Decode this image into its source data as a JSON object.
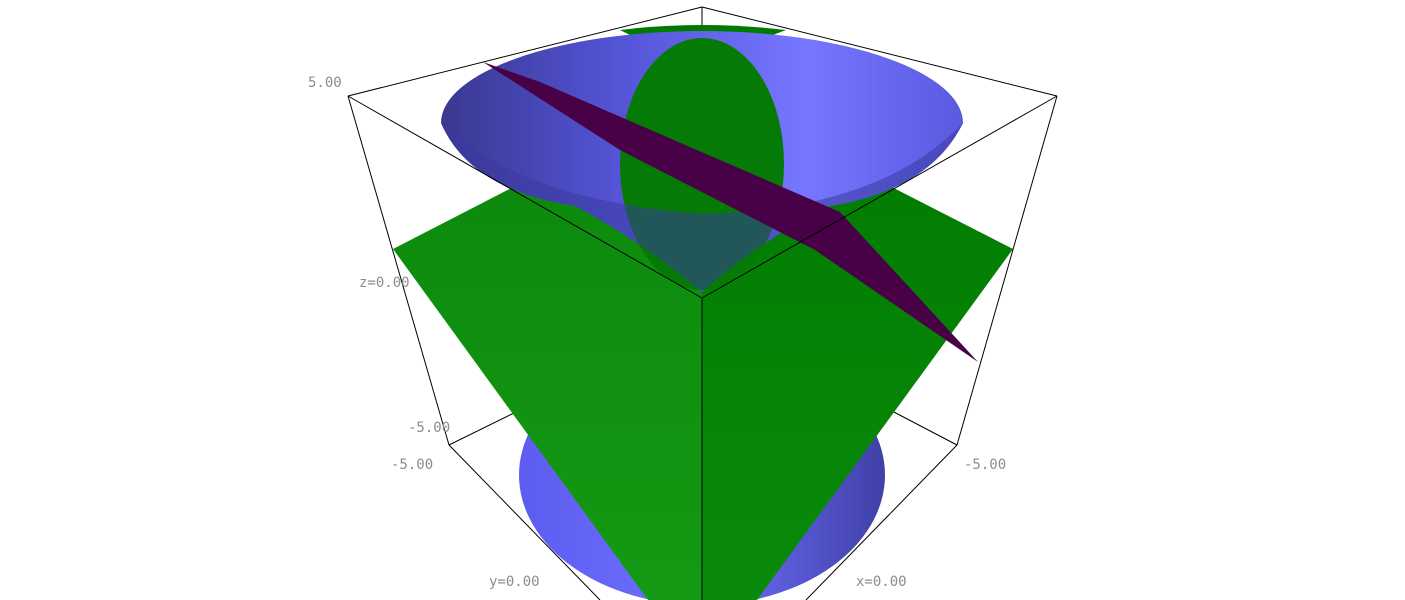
{
  "plot": {
    "axis_labels": {
      "z_max": "5.00",
      "z_mid": "z=0.00",
      "z_min": "-5.00",
      "y_min": "-5.00",
      "y_mid": "y=0.00",
      "x_min": "-5.00",
      "x_mid": "x=0.00"
    },
    "colors": {
      "cone": "#6b6bf5",
      "cone_dark": "#36368a",
      "plane_green": "#0a8a0a",
      "plane_green_dark": "#007700",
      "plane_purple": "#480046",
      "box_edges": "#000000",
      "label_gray": "#8c8c8c",
      "background": "#ffffff"
    }
  }
}
